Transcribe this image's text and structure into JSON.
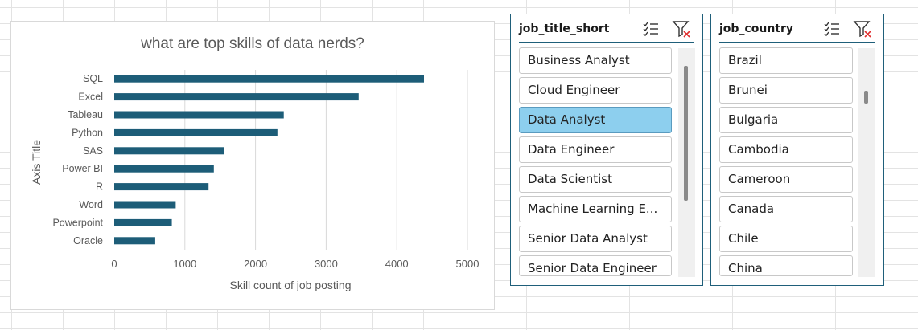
{
  "chart_data": {
    "type": "bar",
    "orientation": "horizontal",
    "title": "what are top skills of data nerds?",
    "xlabel": "Skill count of job posting",
    "ylabel": "Axis Title",
    "categories": [
      "SQL",
      "Excel",
      "Tableau",
      "Python",
      "SAS",
      "Power BI",
      "R",
      "Word",
      "Powerpoint",
      "Oracle"
    ],
    "values": [
      4385,
      3460,
      2400,
      2310,
      1560,
      1410,
      1335,
      870,
      815,
      580
    ],
    "xlim": [
      0,
      5000
    ],
    "xticks": [
      "0",
      "1000",
      "2000",
      "3000",
      "4000",
      "5000"
    ],
    "bar_color": "#1d5d78",
    "grid": true,
    "legend": "none"
  },
  "slicers": {
    "job_title": {
      "title": "job_title_short",
      "items": [
        {
          "label": "Business Analyst",
          "selected": false
        },
        {
          "label": "Cloud Engineer",
          "selected": false
        },
        {
          "label": "Data Analyst",
          "selected": true
        },
        {
          "label": "Data Engineer",
          "selected": false
        },
        {
          "label": "Data Scientist",
          "selected": false
        },
        {
          "label": "Machine Learning E...",
          "selected": false
        },
        {
          "label": "Senior Data Analyst",
          "selected": false
        },
        {
          "label": "Senior Data Engineer",
          "selected": false
        }
      ]
    },
    "job_country": {
      "title": "job_country",
      "items": [
        {
          "label": "Brazil",
          "selected": false
        },
        {
          "label": "Brunei",
          "selected": false
        },
        {
          "label": "Bulgaria",
          "selected": false
        },
        {
          "label": "Cambodia",
          "selected": false
        },
        {
          "label": "Cameroon",
          "selected": false
        },
        {
          "label": "Canada",
          "selected": false
        },
        {
          "label": "Chile",
          "selected": false
        },
        {
          "label": "China",
          "selected": false
        }
      ]
    }
  },
  "icons": {
    "multi_select": "multi-select-icon",
    "clear_filter": "clear-filter-icon"
  },
  "colors": {
    "selected_item": "#8dcfee",
    "slicer_border": "#1f5f7a",
    "clear_filter_x": "#e03030"
  }
}
